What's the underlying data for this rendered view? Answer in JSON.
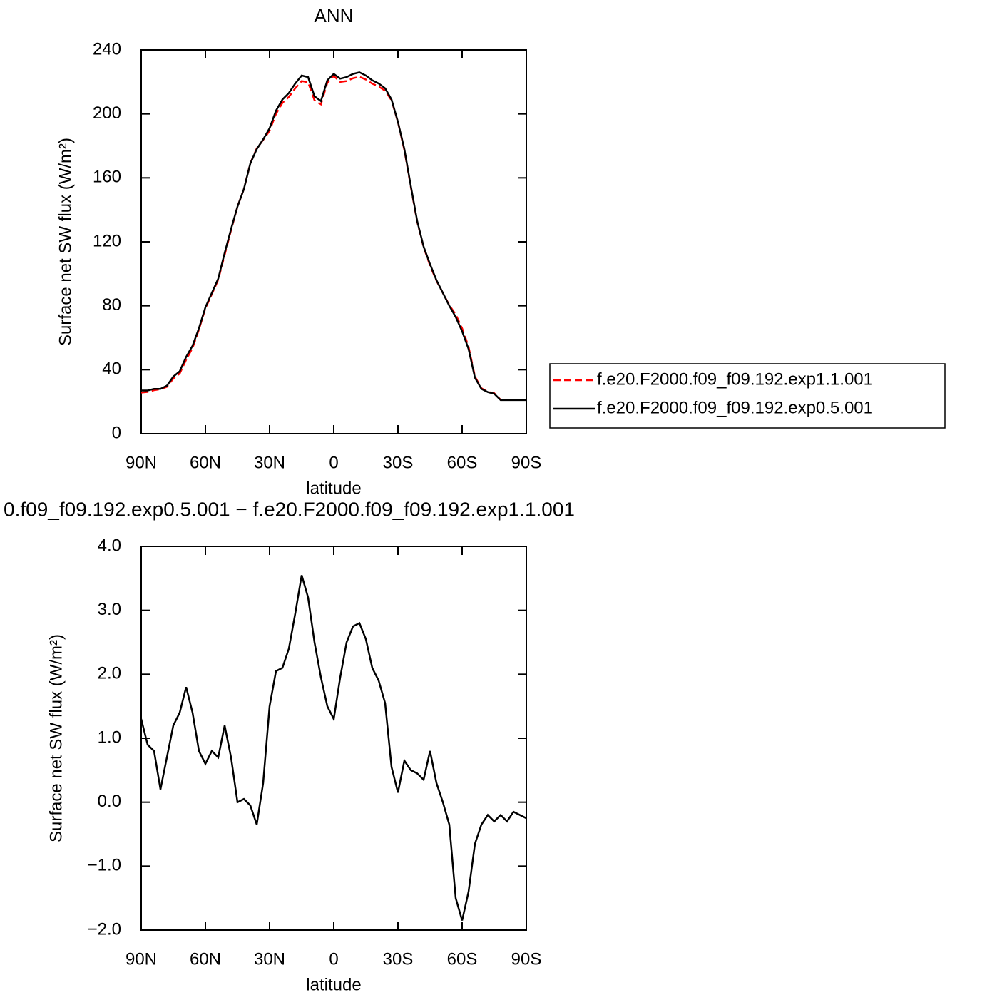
{
  "chart_data": [
    {
      "type": "line",
      "title": "ANN",
      "xlabel": "latitude",
      "ylabel": "Surface net SW flux (W/m²)",
      "x": [
        90,
        87,
        84,
        81,
        78,
        75,
        72,
        69,
        66,
        63,
        60,
        57,
        54,
        51,
        48,
        45,
        42,
        39,
        36,
        33,
        30,
        27,
        24,
        21,
        18,
        15,
        12,
        9,
        6,
        3,
        0,
        -3,
        -6,
        -9,
        -12,
        -15,
        -18,
        -21,
        -24,
        -27,
        -30,
        -33,
        -36,
        -39,
        -42,
        -45,
        -48,
        -51,
        -54,
        -57,
        -60,
        -63,
        -66,
        -69,
        -72,
        -75,
        -78,
        -81,
        -84,
        -87,
        -90
      ],
      "series": [
        {
          "name": "f.e20.F2000.f09_f09.192.exp1.1.001",
          "color": "#ff0000",
          "linestyle": "dashed",
          "values": [
            25.7,
            26.1,
            27.2,
            27.8,
            29.3,
            34.5,
            37.6,
            46.2,
            53.6,
            65.2,
            78.4,
            87.2,
            96.3,
            111.8,
            127.3,
            142,
            153,
            169.1,
            178.4,
            183.7,
            189.5,
            200,
            206.9,
            210.6,
            216,
            220.5,
            219.8,
            208.5,
            206,
            219.5,
            223.7,
            220,
            220.5,
            222.3,
            223.2,
            221.5,
            218.9,
            217.1,
            214.5,
            208.5,
            194.9,
            177.4,
            154.5,
            132.6,
            116.7,
            105.2,
            95.7,
            88,
            80.4,
            74.5,
            65.9,
            54.4,
            35.7,
            28.4,
            26.2,
            25.3,
            21.2,
            21.3,
            21.2,
            21.2,
            21.3
          ]
        },
        {
          "name": "f.e20.F2000.f09_f09.192.exp0.5.001",
          "color": "#000000",
          "linestyle": "solid",
          "values": [
            27,
            27,
            28,
            28,
            30,
            35.7,
            39,
            48,
            55,
            66,
            79,
            88,
            97,
            113,
            128,
            142,
            153,
            169,
            178,
            184,
            191,
            202,
            209,
            213,
            219,
            224,
            223,
            211,
            208,
            221,
            225,
            222,
            223,
            225,
            226,
            224,
            221,
            219,
            216,
            209,
            195,
            178,
            155,
            133,
            117,
            106,
            96,
            88,
            80,
            73,
            64,
            53,
            35,
            28,
            26,
            25,
            21,
            21,
            21,
            21,
            21
          ]
        }
      ],
      "xlim": [
        90,
        -90
      ],
      "xticks": [
        {
          "value": 90,
          "label": "90N"
        },
        {
          "value": 60,
          "label": "60N"
        },
        {
          "value": 30,
          "label": "30N"
        },
        0,
        {
          "value": -30,
          "label": "30S"
        },
        {
          "value": -60,
          "label": "60S"
        },
        {
          "value": -90,
          "label": "90S"
        }
      ],
      "ylim": [
        0,
        240
      ],
      "yticks": [
        0,
        40,
        80,
        120,
        160,
        200,
        240
      ],
      "legend": "right"
    },
    {
      "type": "line",
      "title": "0.f09_f09.192.exp0.5.001 − f.e20.F2000.f09_f09.192.exp1.1.001",
      "xlabel": "latitude",
      "ylabel": "Surface net SW flux (W/m²)",
      "x": [
        90,
        87,
        84,
        81,
        78,
        75,
        72,
        69,
        66,
        63,
        60,
        57,
        54,
        51,
        48,
        45,
        42,
        39,
        36,
        33,
        30,
        27,
        24,
        21,
        18,
        15,
        12,
        9,
        6,
        3,
        0,
        -3,
        -6,
        -9,
        -12,
        -15,
        -18,
        -21,
        -24,
        -27,
        -30,
        -33,
        -36,
        -39,
        -42,
        -45,
        -48,
        -51,
        -54,
        -57,
        -60,
        -63,
        -66,
        -69,
        -72,
        -75,
        -78,
        -81,
        -84,
        -87,
        -90
      ],
      "color": "#000000",
      "values": [
        1.3,
        0.9,
        0.8,
        0.2,
        0.7,
        1.2,
        1.4,
        1.8,
        1.4,
        0.8,
        0.6,
        0.8,
        0.7,
        1.2,
        0.7,
        0,
        0.05,
        -0.05,
        -0.35,
        0.3,
        1.5,
        2.05,
        2.1,
        2.4,
        2.95,
        3.55,
        3.2,
        2.5,
        1.95,
        1.5,
        1.3,
        1.95,
        2.5,
        2.75,
        2.8,
        2.55,
        2.1,
        1.9,
        1.55,
        0.55,
        0.15,
        0.65,
        0.5,
        0.45,
        0.35,
        0.8,
        0.3,
        0,
        -0.35,
        -1.5,
        -1.85,
        -1.4,
        -0.65,
        -0.35,
        -0.2,
        -0.3,
        -0.2,
        -0.3,
        -0.15,
        -0.2,
        -0.25
      ],
      "xlim": [
        90,
        -90
      ],
      "xticks": [
        {
          "value": 90,
          "label": "90N"
        },
        {
          "value": 60,
          "label": "60N"
        },
        {
          "value": 30,
          "label": "30N"
        },
        0,
        {
          "value": -30,
          "label": "30S"
        },
        {
          "value": -60,
          "label": "60S"
        },
        {
          "value": -90,
          "label": "90S"
        }
      ],
      "ylim": [
        -2,
        4
      ],
      "yticks": [
        {
          "value": -2,
          "label": "−2.0"
        },
        {
          "value": -1,
          "label": "−1.0"
        },
        {
          "value": 0,
          "label": "0.0"
        },
        {
          "value": 1,
          "label": "1.0"
        },
        {
          "value": 2,
          "label": "2.0"
        },
        {
          "value": 3,
          "label": "3.0"
        },
        {
          "value": 4,
          "label": "4.0"
        }
      ]
    }
  ]
}
